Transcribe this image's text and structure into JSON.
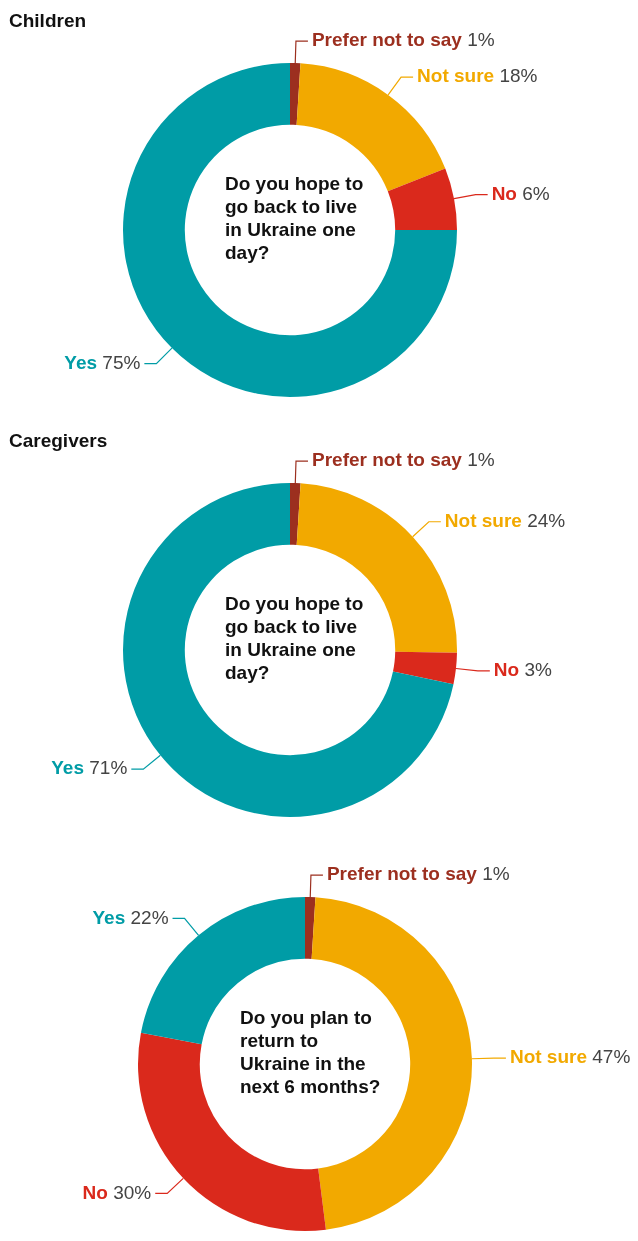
{
  "chart_data": [
    {
      "type": "donut",
      "title": "Children",
      "categories": [
        "Prefer not to say",
        "Not sure",
        "No",
        "Yes"
      ],
      "values": [
        1,
        18,
        6,
        75
      ],
      "colors": [
        "#9c2f1f",
        "#f2a900",
        "#da291c",
        "#009ca6"
      ],
      "value_labels": [
        "1%",
        "18%",
        "6%",
        "75%"
      ],
      "annotations": [
        "Do you hope to go back to live in Ukraine one day?"
      ]
    },
    {
      "type": "donut",
      "title": "Caregivers",
      "categories": [
        "Prefer not to say",
        "Not sure",
        "No",
        "Yes"
      ],
      "values": [
        1,
        24,
        3,
        71
      ],
      "colors": [
        "#9c2f1f",
        "#f2a900",
        "#da291c",
        "#009ca6"
      ],
      "value_labels": [
        "1%",
        "24%",
        "3%",
        "71%"
      ],
      "annotations": [
        "Do you hope to go back to live in Ukraine one day?"
      ]
    },
    {
      "type": "donut",
      "categories": [
        "Prefer not to say",
        "Not sure",
        "No",
        "Yes"
      ],
      "values": [
        1,
        47,
        30,
        22
      ],
      "colors": [
        "#9c2f1f",
        "#f2a900",
        "#da291c",
        "#009ca6"
      ],
      "value_labels": [
        "1%",
        "47%",
        "30%",
        "22%"
      ],
      "annotations": [
        "Do you plan to return to Ukraine in the next 6 months?"
      ]
    }
  ]
}
